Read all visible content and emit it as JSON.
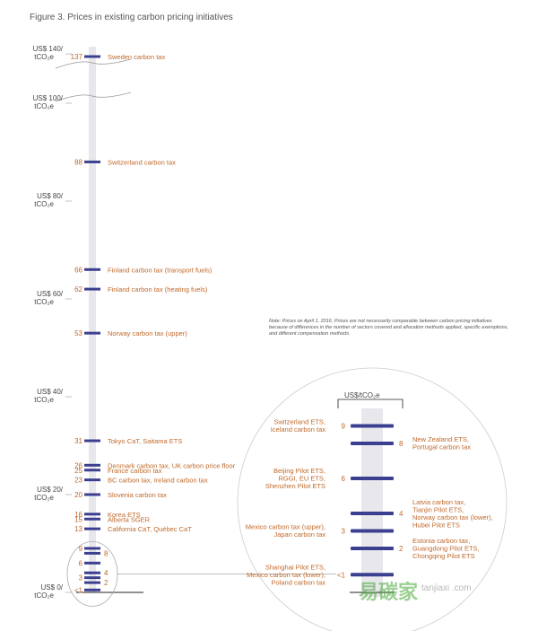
{
  "title": "Figure 3. Prices in existing carbon pricing initiatives",
  "note": "Note: Prices on April 1, 2016. Prices are not necessarily comparable between carbon pricing initiatives because of differences in the number of sectors covered and allocation methods applied, specific exemptions, and different compensation methods.",
  "zoom_title": "US$/tCO₂e",
  "watermark": "易碳家",
  "watermark_sub": "tanjiaxi .com",
  "colors": {
    "bar": "#3c3f8f",
    "label": "#c0692b",
    "axis": "#444444",
    "track": "#e8e8ec"
  },
  "chart_data": {
    "type": "scale",
    "unit": "US$/tCO2e",
    "axis_ticks": [
      {
        "value": 140,
        "line1": "US$ 140/",
        "line2": "tCO₂e"
      },
      {
        "value": 100,
        "line1": "US$ 100/",
        "line2": "tCO₂e"
      },
      {
        "value": 80,
        "line1": "US$ 80/",
        "line2": "tCO₂e"
      },
      {
        "value": 60,
        "line1": "US$ 60/",
        "line2": "tCO₂e"
      },
      {
        "value": 40,
        "line1": "US$ 40/",
        "line2": "tCO₂e"
      },
      {
        "value": 20,
        "line1": "US$ 20/",
        "line2": "tCO₂e"
      },
      {
        "value": 0,
        "line1": "US$ 0/",
        "line2": "tCO₂e"
      }
    ],
    "axis_break": [
      100,
      140
    ],
    "items": [
      {
        "value": "137",
        "label": "Sweden carbon tax"
      },
      {
        "value": "88",
        "label": "Switzerland carbon tax"
      },
      {
        "value": "66",
        "label": "Finland carbon tax (transport fuels)"
      },
      {
        "value": "62",
        "label": "Finland carbon tax (heating fuels)"
      },
      {
        "value": "53",
        "label": "Norway carbon tax (upper)"
      },
      {
        "value": "31",
        "label": "Tokyo CaT, Saitama ETS"
      },
      {
        "value": "26",
        "label": "Denmark carbon tax, UK carbon price floor"
      },
      {
        "value": "25",
        "label": "France carbon tax"
      },
      {
        "value": "23",
        "label": "BC carbon tax, Ireland carbon tax"
      },
      {
        "value": "20",
        "label": "Slovenia carbon tax"
      },
      {
        "value": "16",
        "label": "Korea ETS"
      },
      {
        "value": "15",
        "label": "Alberta SGER"
      },
      {
        "value": "13",
        "label": "California CaT, Québec CaT"
      }
    ],
    "small_values": [
      "9",
      "8",
      "6",
      "4",
      "3",
      "2",
      "<1"
    ],
    "zoom_items": [
      {
        "value": "9",
        "label": "Switzerland ETS, Iceland carbon tax",
        "side": "left"
      },
      {
        "value": "8",
        "label": "New Zealand ETS, Portugal carbon tax",
        "side": "right"
      },
      {
        "value": "6",
        "label": "Beijing Pilot ETS, RGGI, EU ETS, Shenzhen Pilot ETS",
        "side": "left"
      },
      {
        "value": "4",
        "label": "Latvia carbon tax, Tianjin Pilot ETS, Norway carbon tax (lower), Hubei Pilot ETS",
        "side": "right"
      },
      {
        "value": "3",
        "label": "Mexico carbon tax (upper), Japan carbon tax",
        "side": "left"
      },
      {
        "value": "2",
        "label": "Estonia carbon tax, Guangdong Pilot ETS, Chongqing Pilot ETS",
        "side": "right"
      },
      {
        "value": "<1",
        "label": "Shanghai Pilot ETS, Mexico carbon tax (lower), Poland carbon tax",
        "side": "left"
      }
    ]
  }
}
